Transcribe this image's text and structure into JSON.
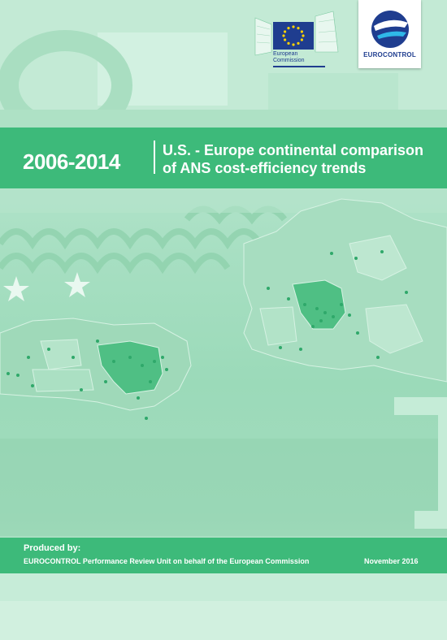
{
  "branding": {
    "ec_text": "European Commission",
    "eurocontrol_name": "EUROCONTROL"
  },
  "title": {
    "year_range": "2006-2014",
    "line1": "U.S. - Europe continental comparison",
    "line2": "of ANS cost-efficiency trends"
  },
  "footer": {
    "produced_by_label": "Produced by:",
    "unit": "EUROCONTROL Performance Review Unit on behalf of the European Commission",
    "date": "November 2016"
  },
  "colors": {
    "band": "#3dba7a",
    "eu_blue": "#1f3d8f",
    "eu_star": "#ffd200"
  }
}
